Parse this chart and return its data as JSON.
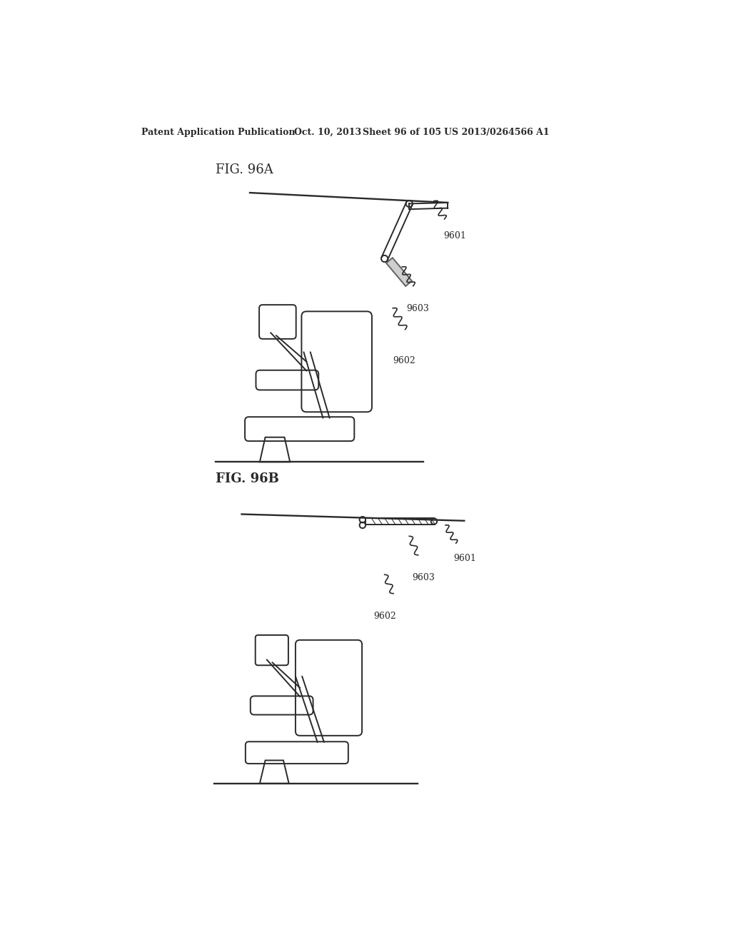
{
  "bg_color": "#ffffff",
  "line_color": "#2a2a2a",
  "header_text": "Patent Application Publication",
  "header_date": "Oct. 10, 2013",
  "header_sheet": "Sheet 96 of 105",
  "header_patent": "US 2013/0264566 A1",
  "fig_a_label": "FIG. 96A",
  "fig_b_label": "FIG. 96B",
  "label_9601": "9601",
  "label_9602": "9602",
  "label_9603": "9603",
  "fig_label_fontsize": 13,
  "header_fontsize": 9,
  "anno_fontsize": 9
}
